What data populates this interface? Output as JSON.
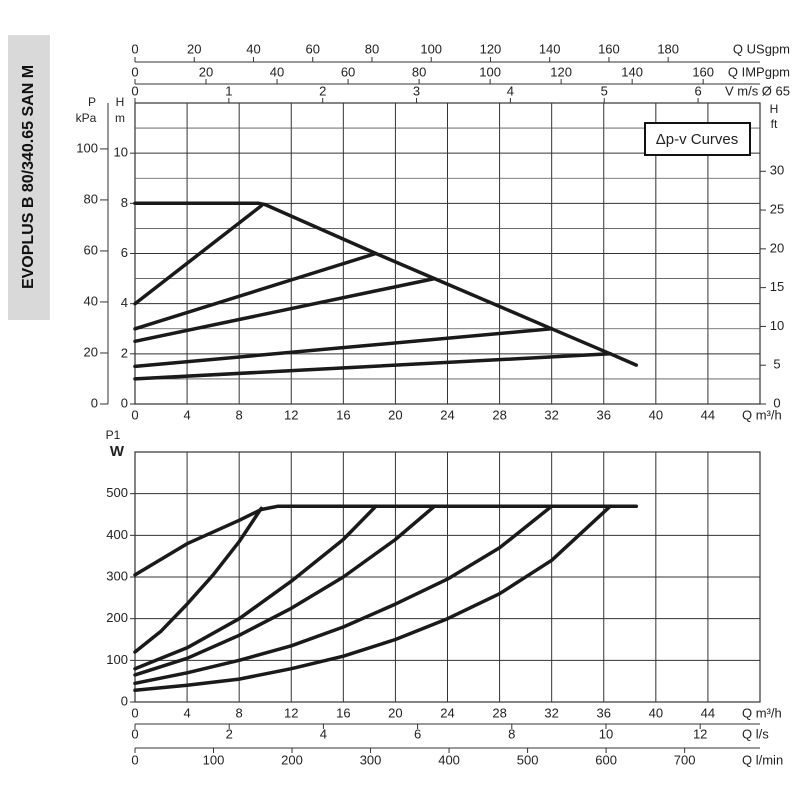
{
  "product_label": "EVOPLUS B 80/340.65 SAN M",
  "chart_data": [
    {
      "type": "line",
      "annotation": "Δp-v Curves",
      "color": "#1a1a1a",
      "xlabel": "Q m³/h",
      "xlim": [
        0,
        48
      ],
      "xticks": [
        0,
        4,
        8,
        12,
        16,
        20,
        24,
        28,
        32,
        36,
        40,
        44
      ],
      "ylabel": [
        "H",
        "m"
      ],
      "ylim": [
        0,
        12
      ],
      "yticks": [
        0,
        2,
        4,
        6,
        8,
        10
      ],
      "minor_grid": [
        1,
        3,
        5,
        7,
        9,
        11
      ],
      "grid": true,
      "y2label": [
        "H",
        "ft"
      ],
      "y2lim": [
        0,
        38.8
      ],
      "y2ticks": [
        0,
        5,
        10,
        15,
        20,
        25,
        30
      ],
      "y3": {
        "label": [
          "P",
          "kPa"
        ],
        "lim": [
          0,
          118
        ],
        "ticks": [
          0,
          20,
          40,
          60,
          80,
          100
        ]
      },
      "top_axes": [
        {
          "label": "Q USgpm",
          "lim": [
            0,
            211
          ],
          "ticks": [
            0,
            20,
            40,
            60,
            80,
            100,
            120,
            140,
            160,
            180
          ]
        },
        {
          "label": "Q IMPgpm",
          "lim": [
            0,
            176
          ],
          "ticks": [
            0,
            20,
            40,
            60,
            80,
            100,
            120,
            140,
            160
          ]
        },
        {
          "label": "V m/s Ø 65",
          "lim": [
            0,
            6.66
          ],
          "ticks": [
            0,
            1,
            2,
            3,
            4,
            5,
            6
          ]
        }
      ],
      "series": [
        {
          "x": [
            0,
            9.5,
            10,
            18.5,
            23,
            32,
            36.5,
            38.5
          ],
          "values": [
            8,
            8,
            7.95,
            6,
            5,
            3,
            2,
            1.55
          ]
        },
        {
          "x": [
            0,
            9.7
          ],
          "values": [
            4,
            7.9
          ]
        },
        {
          "x": [
            0,
            18.5
          ],
          "values": [
            3,
            6
          ]
        },
        {
          "x": [
            0,
            23
          ],
          "values": [
            2.5,
            5
          ]
        },
        {
          "x": [
            0,
            32
          ],
          "values": [
            1.5,
            3
          ]
        },
        {
          "x": [
            0,
            36.5
          ],
          "values": [
            1,
            2
          ]
        }
      ]
    },
    {
      "type": "line",
      "color": "#1a1a1a",
      "xlabel": "Q m³/h",
      "xlim": [
        0,
        48
      ],
      "xticks": [
        0,
        4,
        8,
        12,
        16,
        20,
        24,
        28,
        32,
        36,
        40,
        44
      ],
      "ylabel": [
        "P1",
        "W"
      ],
      "ylim": [
        0,
        600
      ],
      "yticks": [
        0,
        100,
        200,
        300,
        400,
        500
      ],
      "grid": true,
      "bottom_axes": [
        {
          "label": "Q l/s",
          "lim": [
            0,
            13.27
          ],
          "ticks": [
            0,
            2,
            4,
            6,
            8,
            10,
            12
          ]
        },
        {
          "label": "Q l/min",
          "lim": [
            0,
            796
          ],
          "ticks": [
            0,
            100,
            200,
            300,
            400,
            500,
            600,
            700
          ]
        }
      ],
      "series": [
        {
          "x": [
            0,
            4,
            8,
            9.7,
            11,
            38.5
          ],
          "values": [
            305,
            380,
            436,
            462,
            470,
            470
          ]
        },
        {
          "x": [
            0,
            2,
            4,
            6,
            8,
            9.7
          ],
          "values": [
            120,
            170,
            235,
            305,
            385,
            465
          ]
        },
        {
          "x": [
            0,
            4,
            8,
            12,
            16,
            18.5
          ],
          "values": [
            80,
            130,
            200,
            290,
            390,
            470
          ]
        },
        {
          "x": [
            0,
            4,
            8,
            12,
            16,
            20,
            23
          ],
          "values": [
            65,
            105,
            160,
            225,
            300,
            390,
            470
          ]
        },
        {
          "x": [
            0,
            4,
            8,
            12,
            16,
            20,
            24,
            28,
            32
          ],
          "values": [
            45,
            70,
            100,
            135,
            180,
            235,
            295,
            370,
            470
          ]
        },
        {
          "x": [
            0,
            4,
            8,
            12,
            16,
            20,
            24,
            28,
            32,
            36.5
          ],
          "values": [
            28,
            40,
            55,
            80,
            110,
            150,
            200,
            260,
            340,
            470
          ]
        }
      ]
    }
  ]
}
